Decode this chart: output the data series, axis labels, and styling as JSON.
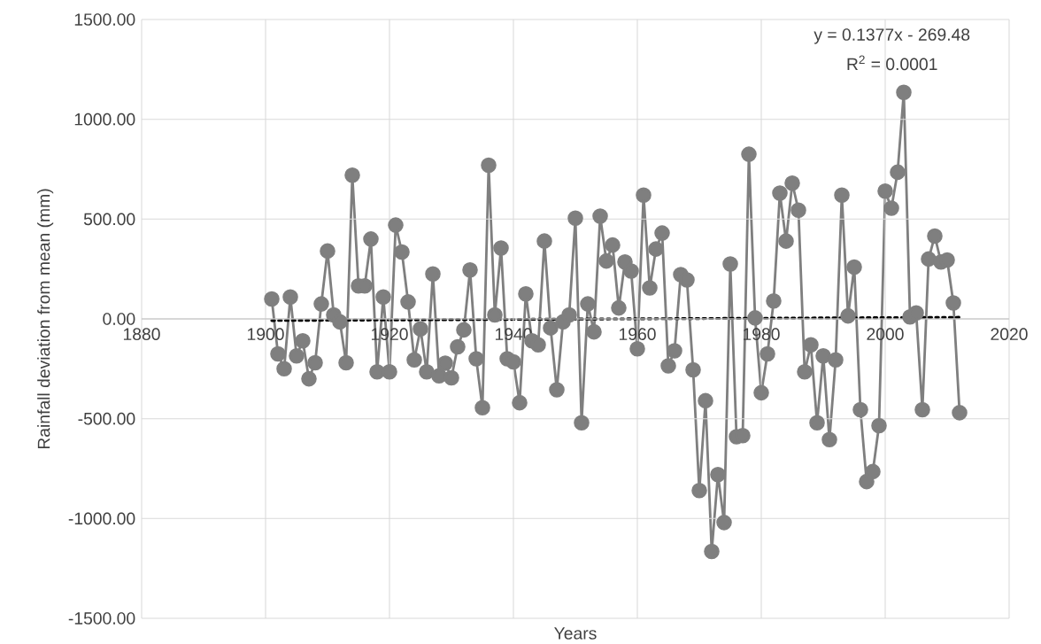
{
  "chart_data": {
    "type": "line",
    "xlabel": "Years",
    "ylabel": "Rainfall deviation from mean (mm)",
    "annotations": [
      "y = 0.1377x - 269.48",
      "R$^{2}$ = 0.0001"
    ],
    "x": [
      1901,
      1902,
      1903,
      1904,
      1905,
      1906,
      1907,
      1908,
      1909,
      1910,
      1911,
      1912,
      1913,
      1914,
      1915,
      1916,
      1917,
      1918,
      1919,
      1920,
      1921,
      1922,
      1923,
      1924,
      1925,
      1926,
      1927,
      1928,
      1929,
      1930,
      1931,
      1932,
      1933,
      1934,
      1935,
      1936,
      1937,
      1938,
      1939,
      1940,
      1941,
      1942,
      1943,
      1944,
      1945,
      1946,
      1947,
      1948,
      1949,
      1950,
      1951,
      1952,
      1953,
      1954,
      1955,
      1956,
      1957,
      1958,
      1959,
      1960,
      1961,
      1962,
      1963,
      1964,
      1965,
      1966,
      1967,
      1968,
      1969,
      1970,
      1971,
      1972,
      1973,
      1974,
      1975,
      1976,
      1977,
      1978,
      1979,
      1980,
      1981,
      1982,
      1983,
      1984,
      1985,
      1986,
      1987,
      1988,
      1989,
      1990,
      1991,
      1992,
      1993,
      1994,
      1995,
      1996,
      1997,
      1998,
      1999,
      2000,
      2001,
      2002,
      2003,
      2004,
      2005,
      2006,
      2007,
      2008,
      2009,
      2010,
      2011,
      2012
    ],
    "series": [
      {
        "color": "#7f7f7f",
        "values": [
          100,
          -175,
          -250,
          110,
          -185,
          -110,
          -300,
          -220,
          75,
          340,
          20,
          -15,
          -220,
          720,
          165,
          165,
          400,
          -265,
          110,
          -265,
          470,
          335,
          85,
          -205,
          -50,
          -265,
          225,
          -285,
          -222,
          -295,
          -140,
          -55,
          245,
          -200,
          -445,
          770,
          20,
          355,
          -200,
          -215,
          -420,
          125,
          -110,
          -130,
          390,
          -45,
          -355,
          -15,
          20,
          505,
          -520,
          75,
          -65,
          515,
          290,
          370,
          55,
          285,
          240,
          -150,
          620,
          155,
          350,
          430,
          -235,
          -160,
          222,
          195,
          -255,
          -860,
          -410,
          -1165,
          -780,
          -1020,
          275,
          -590,
          -585,
          825,
          5,
          -370,
          -175,
          90,
          630,
          390,
          680,
          545,
          -265,
          -130,
          -520,
          -185,
          -605,
          -205,
          620,
          15,
          260,
          -455,
          -815,
          -765,
          -535,
          640,
          555,
          735,
          1135,
          10,
          30,
          -455,
          300,
          415,
          285,
          295,
          80,
          -470
        ]
      },
      {
        "type": "line",
        "x": [
          1901,
          2012
        ],
        "values": [
          -8,
          8
        ],
        "color": "#000000",
        "line_style": "dotted",
        "marker": "none"
      }
    ],
    "marker": "circle",
    "xlim": [
      1880,
      2020
    ],
    "xticks": [
      1880,
      1900,
      1920,
      1940,
      1960,
      1980,
      2000,
      2020
    ],
    "ylim": [
      -1500,
      1500
    ],
    "yticks": [
      {
        "value": -1500,
        "label": "-1500.00"
      },
      {
        "value": -1000,
        "label": "-1000.00"
      },
      {
        "value": -500,
        "label": "-500.00"
      },
      {
        "value": 0,
        "label": "0.00"
      },
      {
        "value": 500,
        "label": "500.00"
      },
      {
        "value": 1000,
        "label": "1000.00"
      },
      {
        "value": 1500,
        "label": "1500.00"
      }
    ],
    "grid": true
  }
}
